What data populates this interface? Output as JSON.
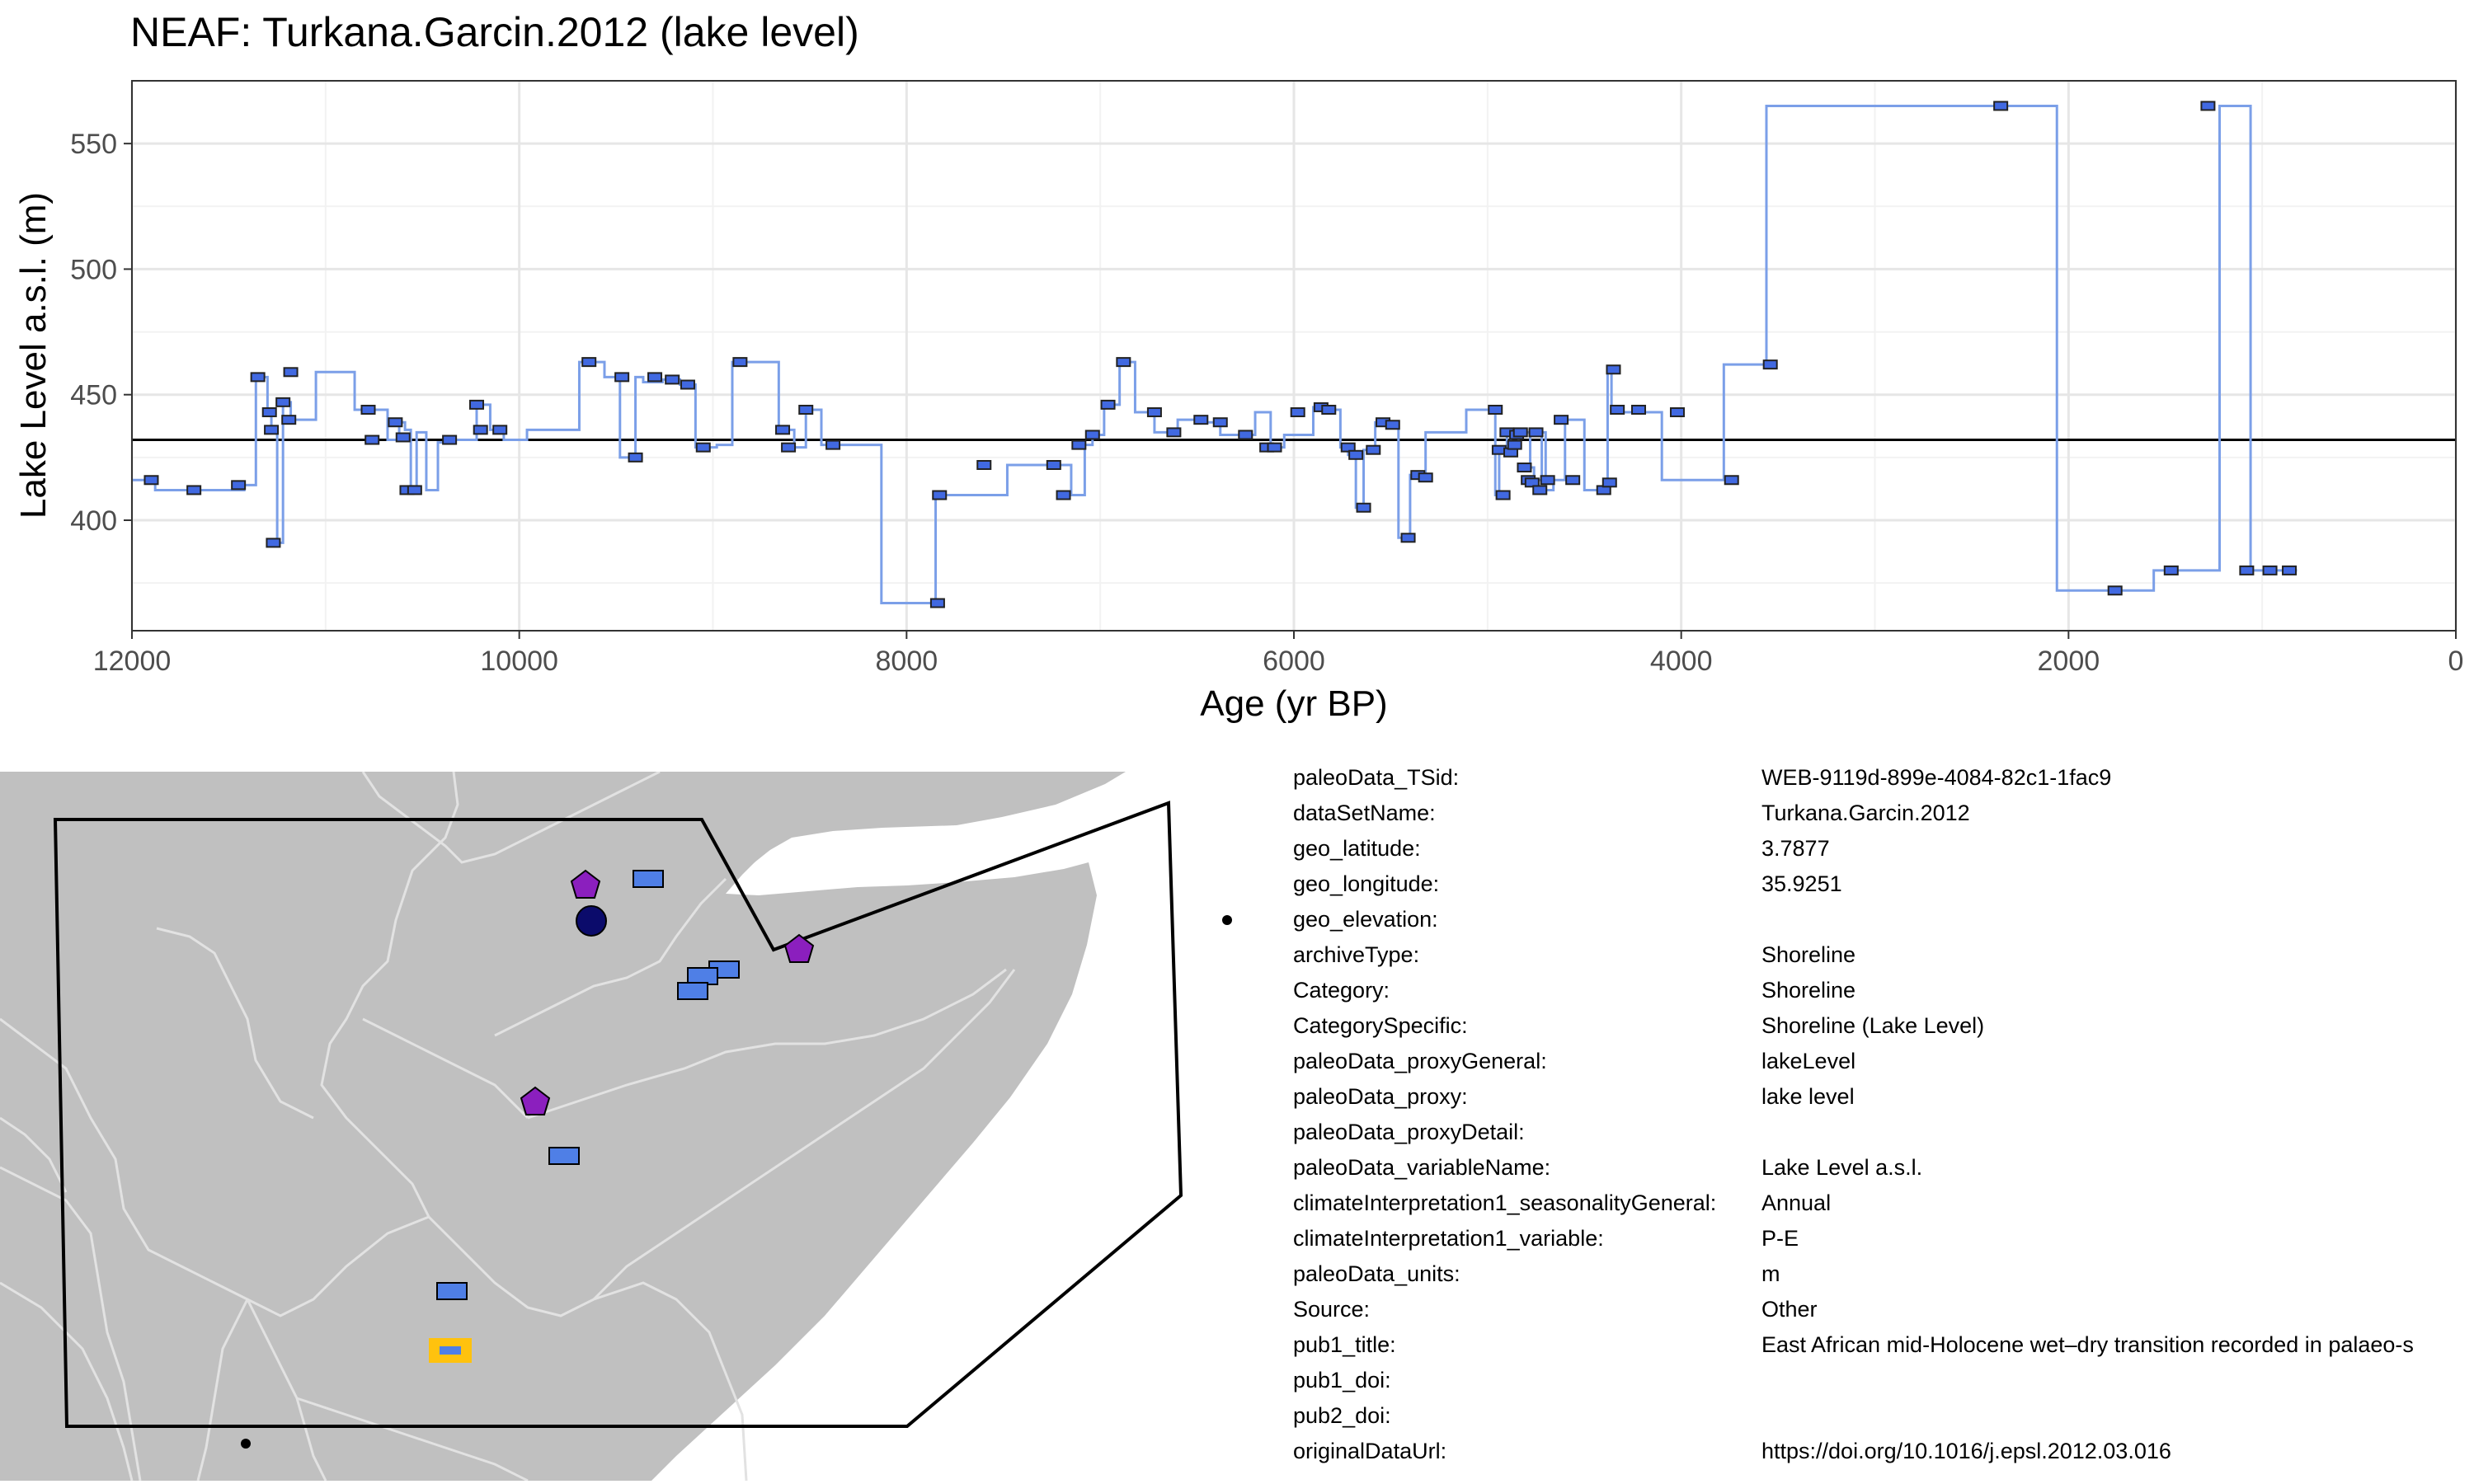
{
  "chart_data": {
    "type": "line",
    "title": "NEAF: Turkana.Garcin.2012 (lake level)",
    "xlabel": "Age (yr BP)",
    "ylabel": "Lake Level a.s.l. (m)",
    "xlim": [
      12000,
      0
    ],
    "ylim": [
      356,
      575
    ],
    "x_reversed": true,
    "x_ticks": [
      12000,
      10000,
      8000,
      6000,
      4000,
      2000,
      0
    ],
    "y_ticks": [
      400,
      450,
      500,
      550
    ],
    "reference_line": 432,
    "grid": true,
    "line_color": "#7B9FE8",
    "marker_color": "#4169E1",
    "series": [
      {
        "step": true,
        "x": [
          12000,
          11880,
          11660,
          11420,
          11360,
          11300,
          11280,
          11250,
          11220,
          11180,
          11050,
          10850,
          10780,
          10680,
          10620,
          10590,
          10560,
          10530,
          10480,
          10420,
          10340,
          10220,
          10150,
          10080,
          9960,
          9850,
          9690,
          9560,
          9480,
          9400,
          9360,
          9260,
          9170,
          9090,
          8980,
          8900,
          8760,
          8660,
          8580,
          8520,
          8440,
          8320,
          8130,
          7990,
          7850,
          7680,
          7480,
          7200,
          7150,
          7080,
          7040,
          6980,
          6900,
          6820,
          6720,
          6650,
          6600,
          6490,
          6380,
          6300,
          6200,
          6120,
          6050,
          5970,
          5900,
          5820,
          5760,
          5720,
          5680,
          5640,
          5580,
          5520,
          5460,
          5400,
          5360,
          5320,
          5220,
          5110,
          4960,
          4940,
          4900,
          4880,
          4860,
          4840,
          4820,
          4780,
          4760,
          4720,
          4700,
          4660,
          4600,
          4500,
          4400,
          4380,
          4360,
          4340,
          4300,
          4220,
          4100,
          3960,
          3780,
          3700,
          3560,
          3460,
          2900,
          2060,
          1740,
          1560,
          1500,
          1260,
          1220,
          1060,
          940,
          820
        ],
        "y": [
          416,
          412,
          412,
          414,
          457,
          443,
          436,
          391,
          447,
          440,
          459,
          444,
          444,
          432,
          439,
          436,
          412,
          435,
          412,
          431,
          432,
          446,
          436,
          432,
          436,
          436,
          463,
          457,
          425,
          457,
          455,
          456,
          454,
          429,
          430,
          463,
          463,
          436,
          429,
          444,
          430,
          430,
          367,
          367,
          410,
          410,
          422,
          422,
          410,
          430,
          434,
          446,
          463,
          443,
          435,
          435,
          440,
          439,
          434,
          434,
          443,
          429,
          434,
          434,
          445,
          444,
          429,
          426,
          405,
          428,
          439,
          438,
          393,
          418,
          417,
          435,
          435,
          444,
          410,
          428,
          435,
          427,
          430,
          434,
          435,
          421,
          416,
          435,
          412,
          416,
          440,
          412,
          415,
          460,
          444,
          444,
          443,
          443,
          416,
          416,
          462,
          462,
          565,
          565,
          565,
          372,
          372,
          380,
          380,
          380,
          565,
          380,
          380,
          380
        ]
      }
    ],
    "markers": {
      "x": [
        11900,
        11680,
        11450,
        11350,
        11290,
        11280,
        11270,
        11220,
        11190,
        11180,
        10780,
        10760,
        10640,
        10600,
        10580,
        10540,
        10360,
        10220,
        10200,
        10100,
        9640,
        9470,
        9400,
        9300,
        9210,
        9130,
        9050,
        8860,
        8640,
        8610,
        8520,
        8380,
        7840,
        7830,
        7600,
        7240,
        7190,
        7110,
        7040,
        6960,
        6880,
        6720,
        6620,
        6480,
        6380,
        6250,
        6140,
        6100,
        5980,
        5860,
        5820,
        5720,
        5680,
        5640,
        5590,
        5540,
        5490,
        5410,
        5360,
        5320,
        4960,
        4940,
        4920,
        4900,
        4880,
        4860,
        4850,
        4830,
        4810,
        4790,
        4770,
        4750,
        4730,
        4690,
        4620,
        4560,
        4400,
        4370,
        4350,
        4330,
        4220,
        4020,
        3740,
        3540,
        2350,
        1760,
        1470,
        1280,
        1080,
        960,
        860
      ],
      "y": [
        416,
        412,
        414,
        457,
        443,
        436,
        391,
        447,
        440,
        459,
        444,
        432,
        439,
        433,
        412,
        412,
        432,
        446,
        436,
        436,
        463,
        457,
        425,
        457,
        456,
        454,
        429,
        463,
        436,
        429,
        444,
        430,
        367,
        410,
        422,
        422,
        410,
        430,
        434,
        446,
        463,
        443,
        435,
        440,
        439,
        434,
        429,
        429,
        443,
        445,
        444,
        429,
        426,
        405,
        428,
        439,
        438,
        393,
        418,
        417,
        444,
        428,
        410,
        435,
        427,
        430,
        434,
        435,
        421,
        416,
        415,
        435,
        412,
        416,
        440,
        416,
        412,
        415,
        460,
        444,
        444,
        443,
        416,
        462,
        565,
        372,
        380,
        565,
        380,
        380,
        380
      ]
    }
  },
  "map": {
    "land_color": "#C0C0C0",
    "sea_color": "#FFFFFF",
    "border_color": "#E2E2E2",
    "region_outline_color": "#000000",
    "highlight_color": "#FFC20E",
    "point_colors": {
      "rectangle": "#4F7FE6",
      "pentagon": "#8B1FBE",
      "circle": "#0B0B6B"
    }
  },
  "metadata": [
    {
      "key": "paleoData_TSid:",
      "value": "WEB-9119d-899e-4084-82c1-1fac9"
    },
    {
      "key": "dataSetName:",
      "value": "Turkana.Garcin.2012"
    },
    {
      "key": "geo_latitude:",
      "value": "3.7877"
    },
    {
      "key": "geo_longitude:",
      "value": "35.9251"
    },
    {
      "key": "geo_elevation:",
      "value": ""
    },
    {
      "key": "archiveType:",
      "value": "Shoreline"
    },
    {
      "key": "Category:",
      "value": "Shoreline"
    },
    {
      "key": "CategorySpecific:",
      "value": "Shoreline (Lake Level)"
    },
    {
      "key": "paleoData_proxyGeneral:",
      "value": "lakeLevel"
    },
    {
      "key": "paleoData_proxy:",
      "value": "lake level"
    },
    {
      "key": "paleoData_proxyDetail:",
      "value": ""
    },
    {
      "key": "paleoData_variableName:",
      "value": "Lake Level a.s.l."
    },
    {
      "key": "climateInterpretation1_seasonalityGeneral:",
      "value": "Annual"
    },
    {
      "key": "climateInterpretation1_variable:",
      "value": "P-E"
    },
    {
      "key": "paleoData_units:",
      "value": "m"
    },
    {
      "key": "Source:",
      "value": "Other"
    },
    {
      "key": "pub1_title:",
      "value": "East African mid-Holocene wet–dry transition recorded in palaeo-s"
    },
    {
      "key": "pub1_doi:",
      "value": ""
    },
    {
      "key": "pub2_doi:",
      "value": ""
    },
    {
      "key": "originalDataUrl:",
      "value": "https://doi.org/10.1016/j.epsl.2012.03.016"
    }
  ]
}
